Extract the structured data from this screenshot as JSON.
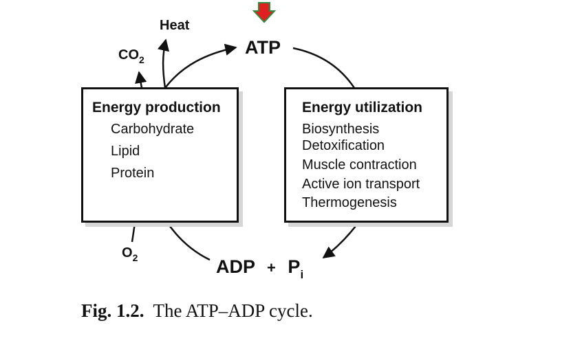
{
  "diagram": {
    "nodes": {
      "atp": "ATP",
      "adp": "ADP",
      "plus": "+",
      "pi_base": "P",
      "pi_sub": "i",
      "heat": "Heat",
      "co2_base": "CO",
      "co2_sub": "2",
      "o2_base": "O",
      "o2_sub": "2"
    },
    "production_box": {
      "title": "Energy production",
      "items": [
        "Carbohydrate",
        "Lipid",
        "Protein"
      ]
    },
    "utilization_box": {
      "title": "Energy utilization",
      "items": [
        "Biosynthesis",
        "Detoxification",
        "Muscle contraction",
        "Active ion transport",
        "Thermogenesis"
      ]
    },
    "colors": {
      "marker_fill": "#e02020",
      "marker_stroke": "#2e8b3a",
      "line": "#111111"
    },
    "marker_icon": "down-arrow-icon"
  },
  "caption": {
    "label": "Fig. 1.2.",
    "text": "The ATP–ADP cycle."
  }
}
